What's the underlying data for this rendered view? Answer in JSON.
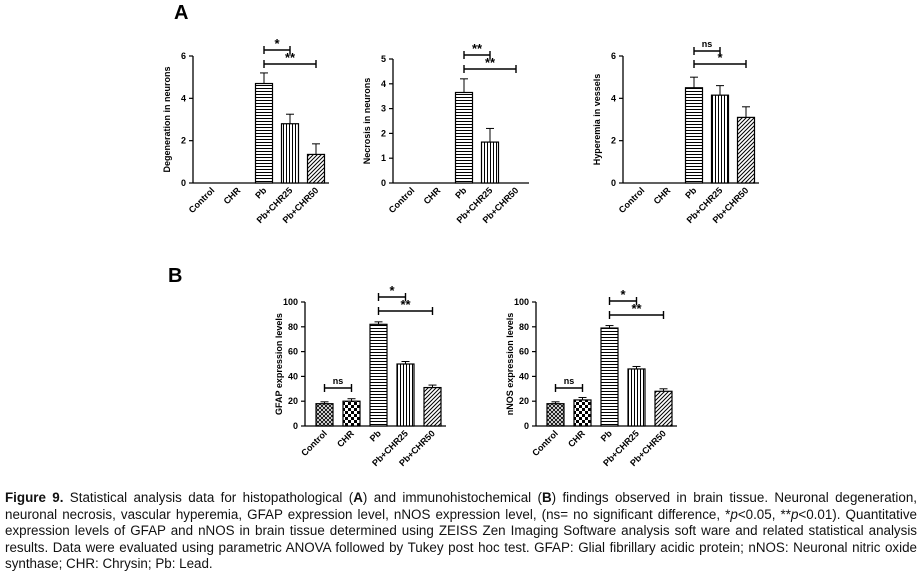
{
  "panels": {
    "a_label": "A",
    "b_label": "B"
  },
  "chart_data": [
    {
      "type": "bar",
      "panel": "A",
      "categories": [
        "Control",
        "CHR",
        "Pb",
        "Pb+CHR25",
        "Pb+CHR50"
      ],
      "values": [
        0,
        0,
        4.7,
        2.8,
        1.35
      ],
      "errors": [
        0,
        0,
        0.5,
        0.45,
        0.5
      ],
      "ylabel": "Degeneration in neurons",
      "ylim": [
        0,
        6
      ],
      "yticks": [
        "0",
        "2",
        "4",
        "6"
      ],
      "patterns": [
        "none",
        "none",
        "horizontal",
        "vertical",
        "diagonal"
      ],
      "significance": [
        {
          "from": 2,
          "to": 3,
          "label": "*"
        },
        {
          "from": 2,
          "to": 4,
          "label": "**"
        }
      ]
    },
    {
      "type": "bar",
      "panel": "A",
      "categories": [
        "Control",
        "CHR",
        "Pb",
        "Pb+CHR25",
        "Pb+CHR50"
      ],
      "values": [
        0,
        0,
        3.65,
        1.65,
        0
      ],
      "errors": [
        0,
        0,
        0.55,
        0.55,
        0
      ],
      "ylabel": "Necrosis in neurons",
      "ylim": [
        0,
        5
      ],
      "yticks": [
        "0",
        "1",
        "2",
        "3",
        "4",
        "5"
      ],
      "patterns": [
        "none",
        "none",
        "horizontal",
        "vertical",
        "diagonal"
      ],
      "significance": [
        {
          "from": 2,
          "to": 3,
          "label": "**"
        },
        {
          "from": 2,
          "to": 4,
          "label": "**"
        }
      ]
    },
    {
      "type": "bar",
      "panel": "A",
      "categories": [
        "Control",
        "CHR",
        "Pb",
        "Pb+CHR25",
        "Pb+CHR50"
      ],
      "values": [
        0,
        0,
        4.5,
        4.15,
        3.1
      ],
      "errors": [
        0,
        0,
        0.5,
        0.45,
        0.5
      ],
      "ylabel": "Hyperemia in vessels",
      "ylim": [
        0,
        6
      ],
      "yticks": [
        "0",
        "2",
        "4",
        "6"
      ],
      "patterns": [
        "none",
        "none",
        "horizontal",
        "vertical",
        "diagonal"
      ],
      "significance": [
        {
          "from": 2,
          "to": 3,
          "label": "ns"
        },
        {
          "from": 2,
          "to": 4,
          "label": "*"
        }
      ]
    },
    {
      "type": "bar",
      "panel": "B",
      "categories": [
        "Control",
        "CHR",
        "Pb",
        "Pb+CHR25",
        "Pb+CHR50"
      ],
      "values": [
        18,
        20,
        82,
        50,
        31
      ],
      "errors": [
        1.5,
        2,
        2,
        2,
        2
      ],
      "ylabel": "GFAP expression levels",
      "ylim": [
        0,
        100
      ],
      "yticks": [
        "0",
        "20",
        "40",
        "60",
        "80",
        "100"
      ],
      "patterns": [
        "grid",
        "checker",
        "horizontal",
        "vertical",
        "diagonal"
      ],
      "significance": [
        {
          "from": 0,
          "to": 1,
          "label": "ns"
        },
        {
          "from": 2,
          "to": 3,
          "label": "*"
        },
        {
          "from": 2,
          "to": 4,
          "label": "**"
        }
      ]
    },
    {
      "type": "bar",
      "panel": "B",
      "categories": [
        "Control",
        "CHR",
        "Pb",
        "Pb+CHR25",
        "Pb+CHR50"
      ],
      "values": [
        18,
        21,
        79,
        46,
        28
      ],
      "errors": [
        1.5,
        2,
        2,
        2,
        2
      ],
      "ylabel": "nNOS expression levels",
      "ylim": [
        0,
        100
      ],
      "yticks": [
        "0",
        "20",
        "40",
        "60",
        "80",
        "100"
      ],
      "patterns": [
        "grid",
        "checker",
        "horizontal",
        "vertical",
        "diagonal"
      ],
      "significance": [
        {
          "from": 0,
          "to": 1,
          "label": "ns"
        },
        {
          "from": 2,
          "to": 3,
          "label": "*"
        },
        {
          "from": 2,
          "to": 4,
          "label": "**"
        }
      ]
    }
  ],
  "caption": {
    "fig_label": "Figure 9.",
    "s1": " Statistical analysis data for histopathological (",
    "a": "A",
    "s2": ") and immunohistochemical (",
    "b": "B",
    "s3": ") findings observed in brain tissue. Neuronal degeneration, neuronal necrosis, vascular hyperemia, GFAP expression level, nNOS expression level, (ns= no significant difference, *",
    "p1": "p",
    "s4": "<0.05, **",
    "p2": "p",
    "s5": "<0.01). Quantitative expression levels of GFAP and nNOS in brain tissue determined using ZEISS Zen Imaging Software analysis soft ware and related statistical analysis results. Data were evaluated using parametric ANOVA followed by Tukey post hoc test. GFAP: Glial fibrillary acidic protein; nNOS: Neuronal nitric oxide synthase; CHR: Chrysin; Pb: Lead."
  }
}
